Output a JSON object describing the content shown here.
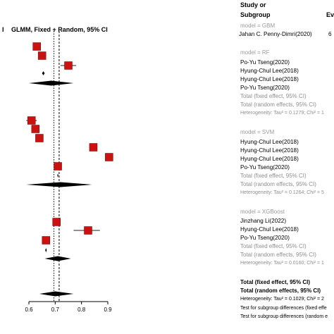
{
  "plot_title": "GLMM, Fixed + Random, 95% CI",
  "left_edge_char": "I",
  "columns": {
    "study_header_1": "Study or",
    "study_header_2": "Subgroup",
    "ev_header": "Ev"
  },
  "groups": [
    {
      "model": "model = GBM",
      "studies": [
        "Jahan C. Penny-Dimri(2020)"
      ],
      "extra_value": "6"
    },
    {
      "model": "model = RF",
      "studies": [
        "Po-Yu Tseng(2020)",
        "Hyung-Chul Lee(2018)",
        "Hyung-Chul Lee(2018)",
        "Po-Yu Tseng(2020)"
      ],
      "fixed": "Total (fixed effect, 95% CI)",
      "random": "Total (random effects, 95% CI)",
      "het": "Heterogeneity: Tau² = 0.1279; Chi² = 1"
    },
    {
      "model": "model = SVM",
      "studies": [
        "Hyung-Chul Lee(2018)",
        "Hyung-Chul Lee(2018)",
        "Hyung-Chul Lee(2018)",
        "Po-Yu Tseng(2020)"
      ],
      "fixed": "Total (fixed effect, 95% CI)",
      "random": "Total (random effects, 95% CI)",
      "het": "Heterogeneity: Tau² = 0.1264; Chi² = 5"
    },
    {
      "model": "model = XGBoost",
      "studies": [
        "Jinzhang Li(2022)",
        "Hyung-Chul Lee(2018)",
        "Po-Yu Tseng(2020)"
      ],
      "fixed": "Total (fixed effect, 95% CI)",
      "random": "Total (random effects, 95% CI)",
      "het": "Heterogeneity: Tau² = 0.0160; Chi² = 1"
    }
  ],
  "overall": {
    "fixed": "Total (fixed effect, 95% CI)",
    "random": "Total (random effects, 95% CI)",
    "het": "Heterogeneity: Tau² = 0.1029; Chi² = 2",
    "test1": "Test for subgroup differences (fixed effe",
    "test2": "Test for subgroup differences (random e"
  },
  "colors": {
    "study_marker": "#cc1111",
    "diamond": "#000000",
    "faint_text": "#8e8e8e"
  },
  "chart_data": {
    "type": "forest",
    "title": "GLMM, Fixed + Random, 95% CI",
    "xlim": [
      0.6,
      0.9
    ],
    "xticks": [
      0.6,
      0.7,
      0.8,
      0.9
    ],
    "xticklabels": [
      "0.6",
      "0.7",
      "0.8",
      "0.9"
    ],
    "reference_lines": {
      "fixed_dotted": 0.695,
      "random_dashed": 0.715
    },
    "rows": [
      {
        "kind": "study",
        "group": "GBM",
        "label": "Jahan C. Penny-Dimri(2020)",
        "est": 0.63,
        "lo": 0.62,
        "hi": 0.64
      },
      {
        "kind": "study",
        "group": "GBM",
        "est": 0.65,
        "lo": 0.64,
        "hi": 0.665
      },
      {
        "kind": "study",
        "group": "RF",
        "label": "Po-Yu Tseng(2020)",
        "est": 0.75,
        "lo": 0.72,
        "hi": 0.78
      },
      {
        "kind": "fixed",
        "group": "RF",
        "est": 0.655,
        "lo": 0.65,
        "hi": 0.66
      },
      {
        "kind": "random",
        "group": "RF",
        "est": 0.685,
        "lo": 0.6,
        "hi": 0.77
      },
      {
        "kind": "study",
        "group": "SVM",
        "label": "Hyung-Chul Lee(2018)",
        "est": 0.61,
        "lo": 0.59,
        "hi": 0.63
      },
      {
        "kind": "study",
        "group": "SVM",
        "label": "Hyung-Chul Lee(2018)",
        "est": 0.625,
        "lo": 0.61,
        "hi": 0.64
      },
      {
        "kind": "study",
        "group": "SVM",
        "label": "Hyung-Chul Lee(2018)",
        "est": 0.64,
        "lo": 0.625,
        "hi": 0.655
      },
      {
        "kind": "study",
        "group": "SVM",
        "label": "Po-Yu Tseng(2020)",
        "est": 0.845,
        "lo": 0.83,
        "hi": 0.86
      },
      {
        "kind": "study",
        "group": "SVM",
        "est": 0.905,
        "lo": 0.89,
        "hi": 0.92
      },
      {
        "kind": "study",
        "group": "SVM",
        "est": 0.71,
        "lo": 0.705,
        "hi": 0.715
      },
      {
        "kind": "fixed",
        "group": "SVM",
        "est": 0.71,
        "lo": 0.708,
        "hi": 0.712
      },
      {
        "kind": "random",
        "group": "SVM",
        "est": 0.72,
        "lo": 0.59,
        "hi": 0.84
      },
      {
        "kind": "study",
        "group": "XGBoost",
        "label": "Jinzhang Li(2022)",
        "est": 0.705,
        "lo": 0.7,
        "hi": 0.71
      },
      {
        "kind": "study",
        "group": "XGBoost",
        "label": "Hyung-Chul Lee(2018)",
        "est": 0.825,
        "lo": 0.77,
        "hi": 0.87
      },
      {
        "kind": "study",
        "group": "XGBoost",
        "label": "Po-Yu Tseng(2020)",
        "est": 0.665,
        "lo": 0.66,
        "hi": 0.67
      },
      {
        "kind": "fixed",
        "group": "XGBoost",
        "est": 0.665,
        "lo": 0.662,
        "hi": 0.668
      },
      {
        "kind": "random",
        "group": "XGBoost",
        "est": 0.71,
        "lo": 0.66,
        "hi": 0.76
      },
      {
        "kind": "random",
        "group": "Overall",
        "est": 0.7,
        "lo": 0.64,
        "hi": 0.77
      }
    ]
  }
}
